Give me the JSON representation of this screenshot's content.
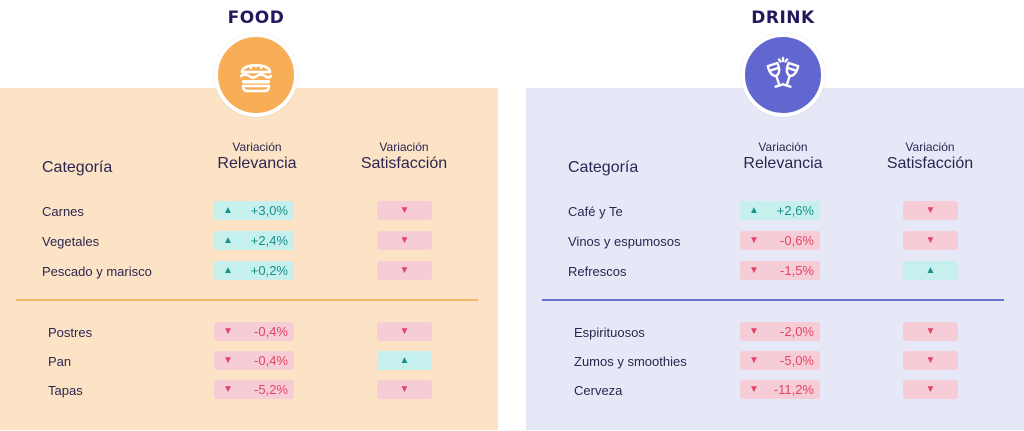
{
  "food": {
    "title": "FOOD",
    "icon": "burger-icon",
    "color": "#f8ae57",
    "headers": {
      "categoria": "Categoría",
      "variacion_a": "Variación",
      "relevancia": "Relevancia",
      "variacion_b": "Variación",
      "satisfaccion": "Satisfacción"
    },
    "rows": [
      {
        "label": "Carnes",
        "relevancia": "+3,0%",
        "rel_dir": "up",
        "sat_dir": "down"
      },
      {
        "label": "Vegetales",
        "relevancia": "+2,4%",
        "rel_dir": "up",
        "sat_dir": "down"
      },
      {
        "label": "Pescado y marisco",
        "relevancia": "+0,2%",
        "rel_dir": "up",
        "sat_dir": "down"
      },
      {
        "label": "Postres",
        "relevancia": "-0,4%",
        "rel_dir": "down",
        "sat_dir": "down"
      },
      {
        "label": "Pan",
        "relevancia": "-0,4%",
        "rel_dir": "down",
        "sat_dir": "up"
      },
      {
        "label": "Tapas",
        "relevancia": "-5,2%",
        "rel_dir": "down",
        "sat_dir": "down"
      }
    ]
  },
  "drink": {
    "title": "DRINK",
    "icon": "wine-glasses-icon",
    "color": "#6267cf",
    "headers": {
      "categoria": "Categoría",
      "variacion_a": "Variación",
      "relevancia": "Relevancia",
      "variacion_b": "Variación",
      "satisfaccion": "Satisfacción"
    },
    "rows": [
      {
        "label": "Café y Te",
        "relevancia": "+2,6%",
        "rel_dir": "up",
        "sat_dir": "down"
      },
      {
        "label": "Vinos y espumosos",
        "relevancia": "-0,6%",
        "rel_dir": "down",
        "sat_dir": "down"
      },
      {
        "label": "Refrescos",
        "relevancia": "-1,5%",
        "rel_dir": "down",
        "sat_dir": "up"
      },
      {
        "label": "Espirituosos",
        "relevancia": "-2,0%",
        "rel_dir": "down",
        "sat_dir": "down"
      },
      {
        "label": "Zumos y smoothies",
        "relevancia": "-5,0%",
        "rel_dir": "down",
        "sat_dir": "down"
      },
      {
        "label": "Cerveza",
        "relevancia": "-11,2%",
        "rel_dir": "down",
        "sat_dir": "down"
      }
    ]
  },
  "colors": {
    "up_bg": "#c6f0ee",
    "up_fg": "#1a8f89",
    "down_bg": "#f6ccd6",
    "down_fg": "#e24563"
  }
}
